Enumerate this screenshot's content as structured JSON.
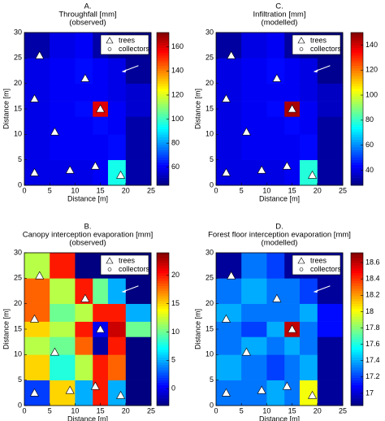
{
  "chart_data": [
    {
      "type": "heatmap",
      "label": "A.",
      "title": "Throughfall [mm]",
      "subtitle": "(observed)",
      "xlabel": "Distance [m]",
      "ylabel": "Distance [m]",
      "xlim": [
        0,
        25
      ],
      "ylim": [
        0,
        30
      ],
      "xticks": [
        0,
        5,
        10,
        15,
        20,
        25
      ],
      "yticks": [
        0,
        5,
        10,
        15,
        20,
        25,
        30
      ],
      "x_edges": [
        0,
        5,
        10,
        13.5,
        16.5,
        20,
        25
      ],
      "y_edges": [
        0,
        5,
        10,
        13.5,
        16.5,
        20,
        25,
        30
      ],
      "z": [
        [
          58,
          58,
          58,
          60,
          95,
          50
        ],
        [
          58,
          60,
          60,
          60,
          62,
          50
        ],
        [
          58,
          60,
          60,
          62,
          60,
          50
        ],
        [
          58,
          60,
          62,
          160,
          60,
          55
        ],
        [
          58,
          60,
          60,
          60,
          58,
          55
        ],
        [
          58,
          60,
          62,
          60,
          58,
          48
        ],
        [
          50,
          58,
          60,
          50,
          46,
          46
        ]
      ],
      "clim": [
        45,
        172
      ],
      "cticks": [
        60,
        80,
        100,
        120,
        140,
        160
      ],
      "trees": {
        "name": "trees",
        "x": [
          3,
          12,
          2,
          6,
          15,
          2,
          9,
          14,
          19
        ],
        "y": [
          25.5,
          21,
          17,
          10.5,
          15,
          2.5,
          3,
          3.8,
          2
        ]
      },
      "collectors": {
        "name": "collectors"
      },
      "legend": "upper right"
    },
    {
      "type": "heatmap",
      "label": "B.",
      "title": "Canopy interception evaporation [mm]",
      "subtitle": "(observed)",
      "xlabel": "Distance [m]",
      "ylabel": "Distance [m]",
      "xlim": [
        0,
        25
      ],
      "ylim": [
        0,
        30
      ],
      "xticks": [
        0,
        5,
        10,
        15,
        20,
        25
      ],
      "yticks": [
        0,
        5,
        10,
        15,
        20,
        25,
        30
      ],
      "x_edges": [
        0,
        5,
        10,
        13.5,
        16.5,
        20,
        25
      ],
      "y_edges": [
        0,
        5,
        10,
        13.5,
        16.5,
        20,
        25,
        30
      ],
      "z": [
        [
          2,
          15,
          5,
          20,
          5,
          -3
        ],
        [
          15,
          8,
          12,
          20,
          18,
          -3
        ],
        [
          12,
          10,
          18,
          -2,
          20,
          -3
        ],
        [
          15,
          12,
          20,
          0,
          22,
          10
        ],
        [
          18,
          10,
          12,
          20,
          20,
          5
        ],
        [
          18,
          12,
          20,
          10,
          5,
          -3
        ],
        [
          12,
          20,
          -3,
          -3,
          -3,
          -3
        ]
      ],
      "clim": [
        -3,
        24
      ],
      "cticks": [
        0,
        5,
        10,
        15,
        20
      ],
      "trees": {
        "name": "trees",
        "x": [
          3,
          12,
          2,
          6,
          15,
          2,
          9,
          14,
          19
        ],
        "y": [
          25.5,
          21,
          17,
          10.5,
          15,
          2.5,
          3,
          3.8,
          2
        ]
      },
      "collectors": {
        "name": "collectors"
      },
      "legend": "upper right"
    },
    {
      "type": "heatmap",
      "label": "C.",
      "title": "Infiltration [mm]",
      "subtitle": "(modelled)",
      "xlabel": "Distance [m]",
      "ylabel": "Distance [m]",
      "xlim": [
        0,
        25
      ],
      "ylim": [
        0,
        30
      ],
      "xticks": [
        0,
        5,
        10,
        15,
        20,
        25
      ],
      "yticks": [
        0,
        5,
        10,
        15,
        20,
        25,
        30
      ],
      "x_edges": [
        0,
        5,
        10,
        13.5,
        16.5,
        20,
        25
      ],
      "y_edges": [
        0,
        5,
        10,
        13.5,
        16.5,
        20,
        25,
        30
      ],
      "z": [
        [
          40,
          40,
          40,
          42,
          78,
          32
        ],
        [
          40,
          42,
          42,
          42,
          44,
          32
        ],
        [
          40,
          42,
          42,
          44,
          42,
          32
        ],
        [
          40,
          42,
          44,
          145,
          42,
          36
        ],
        [
          40,
          42,
          42,
          42,
          40,
          36
        ],
        [
          40,
          42,
          44,
          42,
          40,
          30
        ],
        [
          32,
          40,
          42,
          32,
          28,
          28
        ]
      ],
      "clim": [
        28,
        150
      ],
      "cticks": [
        40,
        60,
        80,
        100,
        120,
        140
      ],
      "trees": {
        "name": "trees",
        "x": [
          3,
          12,
          2,
          6,
          15,
          2,
          9,
          14,
          19
        ],
        "y": [
          25.5,
          21,
          17,
          10.5,
          15,
          2.5,
          3,
          3.8,
          2
        ]
      },
      "collectors": {
        "name": "collectors"
      },
      "legend": "upper right"
    },
    {
      "type": "heatmap",
      "label": "D.",
      "title": "Forest floor interception evaporation [mm]",
      "subtitle": "(modelled)",
      "xlabel": "Distance [m]",
      "ylabel": "Distance [m]",
      "xlim": [
        0,
        25
      ],
      "ylim": [
        0,
        30
      ],
      "xticks": [
        0,
        5,
        10,
        15,
        20,
        25
      ],
      "yticks": [
        0,
        5,
        10,
        15,
        20,
        25,
        30
      ],
      "x_edges": [
        0,
        5,
        10,
        13.5,
        16.5,
        20,
        25
      ],
      "y_edges": [
        0,
        5,
        10,
        13.5,
        16.5,
        20,
        25,
        30
      ],
      "z": [
        [
          17.3,
          17.3,
          17.4,
          17.3,
          18,
          16.9
        ],
        [
          17.4,
          17.3,
          17.2,
          17.3,
          17.4,
          16.9
        ],
        [
          17.3,
          17.4,
          17.3,
          17.4,
          17.3,
          16.9
        ],
        [
          17.3,
          17.2,
          17.4,
          18.6,
          17.3,
          17.1
        ],
        [
          17.4,
          17.3,
          17.3,
          17.3,
          17.4,
          17.1
        ],
        [
          17.3,
          17.4,
          17.3,
          17.3,
          17.2,
          16.9
        ],
        [
          16.9,
          17.3,
          17.2,
          16.9,
          16.9,
          16.9
        ]
      ],
      "clim": [
        16.85,
        18.72
      ],
      "cticks": [
        17,
        17.2,
        17.4,
        17.6,
        17.8,
        18,
        18.2,
        18.4,
        18.6
      ],
      "trees": {
        "name": "trees",
        "x": [
          3,
          12,
          2,
          6,
          15,
          2,
          9,
          14,
          19
        ],
        "y": [
          25.5,
          21,
          17,
          10.5,
          15,
          2.5,
          3,
          3.8,
          2
        ]
      },
      "collectors": {
        "name": "collectors"
      },
      "legend": "upper right"
    }
  ]
}
